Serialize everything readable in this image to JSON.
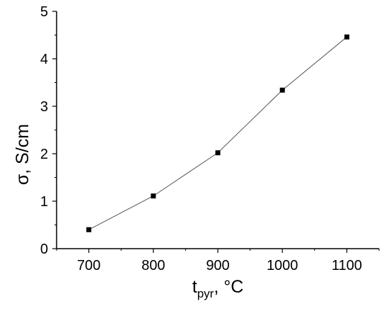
{
  "chart_data": {
    "type": "line",
    "title": "",
    "xlabel": {
      "main": "t",
      "sub": "pyr",
      "rest": ", °C"
    },
    "ylabel": "σ, S/cm",
    "xlim": [
      650,
      1150
    ],
    "ylim": [
      0,
      5
    ],
    "x_ticks": [
      700,
      800,
      900,
      1000,
      1100
    ],
    "y_ticks": [
      0,
      1,
      2,
      3,
      4,
      5
    ],
    "x_tick_labels": [
      "700",
      "800",
      "900",
      "1000",
      "1100"
    ],
    "y_tick_labels": [
      "0",
      "1",
      "2",
      "3",
      "4",
      "5"
    ],
    "grid": false,
    "series": [
      {
        "marker": "square",
        "x": [
          700,
          800,
          900,
          1000,
          1100
        ],
        "y": [
          0.4,
          1.11,
          2.02,
          3.34,
          4.46
        ]
      }
    ],
    "colors": {
      "line": "#555555",
      "marker": "#000000",
      "axis": "#000000"
    }
  }
}
